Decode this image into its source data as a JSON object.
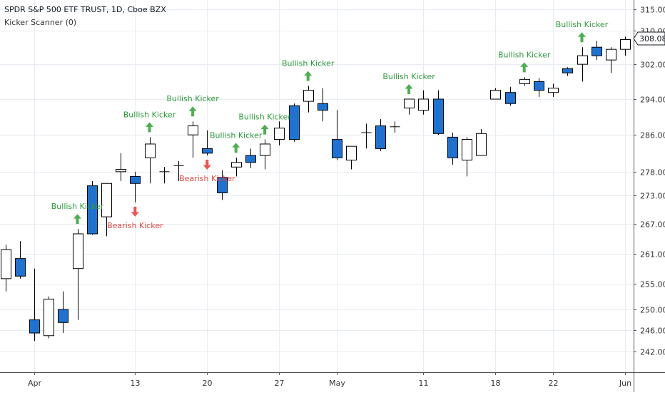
{
  "header": {
    "title": "SPDR S&P 500 ETF TRUST, 1D, Cboe BZX",
    "study": "Kicker Scanner (0)"
  },
  "colors": {
    "bullish_marker": "#4caf50",
    "bearish_marker": "#ef5350",
    "down_candle": "#1e73d2",
    "up_candle": "#ffffff",
    "grid": "#e6ecf2"
  },
  "chart_data": {
    "type": "candlestick",
    "price_scale": "log",
    "y_ticks": [
      "315.00",
      "310.00",
      "302.00",
      "294.00",
      "286.00",
      "278.00",
      "273.00",
      "267.00",
      "261.00",
      "255.00",
      "250.00",
      "246.00",
      "242.00"
    ],
    "x_ticks": [
      "Apr",
      "13",
      "20",
      "27",
      "May",
      "11",
      "18",
      "22",
      "Jun"
    ],
    "last_price_label": "308.08",
    "candles": [
      {
        "o": 256.0,
        "h": 262.8,
        "l": 253.5,
        "c": 261.8
      },
      {
        "o": 260.0,
        "h": 263.5,
        "l": 256.0,
        "c": 256.5
      },
      {
        "o": 248.0,
        "h": 258.0,
        "l": 244.0,
        "c": 245.5
      },
      {
        "o": 245.0,
        "h": 252.5,
        "l": 244.5,
        "c": 252.0
      },
      {
        "o": 250.0,
        "h": 253.5,
        "l": 245.5,
        "c": 247.5
      },
      {
        "o": 258.0,
        "h": 266.0,
        "l": 248.0,
        "c": 265.0
      },
      {
        "o": 275.0,
        "h": 276.0,
        "l": 264.8,
        "c": 265.0
      },
      {
        "o": 268.5,
        "h": 275.0,
        "l": 264.5,
        "c": 275.5
      },
      {
        "o": 278.0,
        "h": 282.0,
        "l": 276.0,
        "c": 278.5
      },
      {
        "o": 277.0,
        "h": 278.0,
        "l": 271.5,
        "c": 275.5
      },
      {
        "o": 281.0,
        "h": 285.5,
        "l": 275.5,
        "c": 284.0
      },
      {
        "o": 278.0,
        "h": 279.0,
        "l": 275.5,
        "c": 278.0
      },
      {
        "o": 279.3,
        "h": 280.3,
        "l": 276.0,
        "c": 279.3
      },
      {
        "o": 286.0,
        "h": 289.0,
        "l": 281.0,
        "c": 288.0
      },
      {
        "o": 283.0,
        "h": 287.0,
        "l": 281.5,
        "c": 282.0
      },
      {
        "o": 276.8,
        "h": 278.3,
        "l": 272.0,
        "c": 273.5
      },
      {
        "o": 279.0,
        "h": 281.0,
        "l": 277.0,
        "c": 280.0
      },
      {
        "o": 281.5,
        "h": 283.0,
        "l": 278.8,
        "c": 280.0
      },
      {
        "o": 281.5,
        "h": 285.0,
        "l": 278.5,
        "c": 284.0
      },
      {
        "o": 285.0,
        "h": 289.0,
        "l": 283.7,
        "c": 287.5
      },
      {
        "o": 292.5,
        "h": 293.0,
        "l": 284.5,
        "c": 285.0
      },
      {
        "o": 293.5,
        "h": 297.0,
        "l": 291.0,
        "c": 296.0
      },
      {
        "o": 293.0,
        "h": 296.5,
        "l": 289.0,
        "c": 291.5
      },
      {
        "o": 285.0,
        "h": 291.5,
        "l": 280.5,
        "c": 281.0
      },
      {
        "o": 280.5,
        "h": 283.0,
        "l": 278.5,
        "c": 283.5
      },
      {
        "o": 286.5,
        "h": 288.5,
        "l": 283.0,
        "c": 286.5
      },
      {
        "o": 288.0,
        "h": 289.5,
        "l": 282.5,
        "c": 283.0
      },
      {
        "o": 287.8,
        "h": 289.0,
        "l": 286.5,
        "c": 287.8
      },
      {
        "o": 292.0,
        "h": 294.0,
        "l": 290.5,
        "c": 294.0
      },
      {
        "o": 291.5,
        "h": 296.0,
        "l": 290.5,
        "c": 294.0
      },
      {
        "o": 294.0,
        "h": 296.0,
        "l": 286.0,
        "c": 286.3
      },
      {
        "o": 285.5,
        "h": 286.5,
        "l": 279.5,
        "c": 281.0
      },
      {
        "o": 280.5,
        "h": 285.5,
        "l": 277.0,
        "c": 285.0
      },
      {
        "o": 281.5,
        "h": 287.3,
        "l": 281.5,
        "c": 286.3
      },
      {
        "o": 294.0,
        "h": 296.5,
        "l": 294.0,
        "c": 296.0
      },
      {
        "o": 295.5,
        "h": 296.8,
        "l": 292.5,
        "c": 293.0
      },
      {
        "o": 297.5,
        "h": 299.0,
        "l": 297.0,
        "c": 298.5
      },
      {
        "o": 298.0,
        "h": 298.8,
        "l": 294.5,
        "c": 296.0
      },
      {
        "o": 295.5,
        "h": 297.5,
        "l": 294.5,
        "c": 296.5
      },
      {
        "o": 301.0,
        "h": 301.3,
        "l": 299.3,
        "c": 300.0
      },
      {
        "o": 302.0,
        "h": 306.0,
        "l": 298.0,
        "c": 304.0
      },
      {
        "o": 306.0,
        "h": 307.5,
        "l": 303.0,
        "c": 304.0
      },
      {
        "o": 303.0,
        "h": 306.0,
        "l": 300.0,
        "c": 305.5
      },
      {
        "o": 305.5,
        "h": 308.5,
        "l": 304.0,
        "c": 307.8
      }
    ],
    "signals": [
      {
        "index": 5,
        "type": "bullish",
        "label": "Bullish Kicker"
      },
      {
        "index": 9,
        "type": "bearish",
        "label": "Bearish Kicker"
      },
      {
        "index": 10,
        "type": "bullish",
        "label": "Bullish Kicker"
      },
      {
        "index": 13,
        "type": "bullish",
        "label": "Bullish Kicker"
      },
      {
        "index": 14,
        "type": "bearish",
        "label": "Bearish Kicker"
      },
      {
        "index": 16,
        "type": "bullish",
        "label": "Bullish Kicker"
      },
      {
        "index": 18,
        "type": "bullish",
        "label": "Bullish Kicker"
      },
      {
        "index": 21,
        "type": "bullish",
        "label": "Bullish Kicker"
      },
      {
        "index": 28,
        "type": "bullish",
        "label": "Bullish Kicker"
      },
      {
        "index": 36,
        "type": "bullish",
        "label": "Bullish Kicker"
      },
      {
        "index": 40,
        "type": "bullish",
        "label": "Bullish Kicker"
      }
    ]
  }
}
